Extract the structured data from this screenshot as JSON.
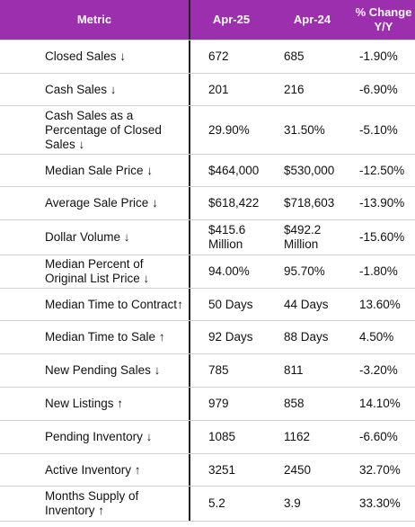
{
  "table": {
    "header": [
      "Metric",
      "Apr-25",
      "Apr-24",
      "% Change Y/Y"
    ],
    "rows": [
      [
        "Closed Sales ↓",
        "672",
        "685",
        "-1.90%"
      ],
      [
        "Cash Sales ↓",
        "201",
        "216",
        "-6.90%"
      ],
      [
        "Cash Sales as a Percentage of Closed Sales ↓",
        "29.90%",
        "31.50%",
        "-5.10%"
      ],
      [
        "Median Sale Price ↓",
        "$464,000",
        "$530,000",
        "-12.50%"
      ],
      [
        "Average Sale Price ↓",
        "$618,422",
        "$718,603",
        "-13.90%"
      ],
      [
        "Dollar Volume ↓",
        "$415.6 Million",
        "$492.2 Million",
        "-15.60%"
      ],
      [
        "Median Percent of Original List Price ↓",
        "94.00%",
        "95.70%",
        "-1.80%"
      ],
      [
        "Median Time to Contract↑",
        "50 Days",
        "44 Days",
        "13.60%"
      ],
      [
        "Median Time to Sale ↑",
        "92 Days",
        "88 Days",
        "4.50%"
      ],
      [
        "New Pending Sales ↓",
        "785",
        "811",
        "-3.20%"
      ],
      [
        "New Listings ↑",
        "979",
        "858",
        "14.10%"
      ],
      [
        "Pending Inventory ↓",
        "1085",
        "1162",
        "-6.60%"
      ],
      [
        "Active Inventory ↑",
        "3251",
        "2450",
        "32.70%"
      ],
      [
        "Months Supply of Inventory ↑",
        "5.2",
        "3.9",
        "33.30%"
      ]
    ]
  }
}
